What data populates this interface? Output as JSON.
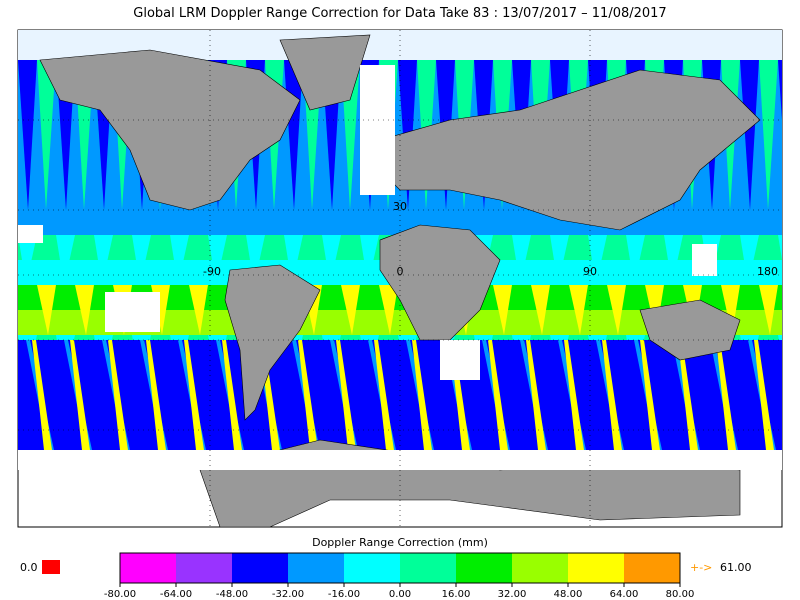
{
  "title": "Global LRM Doppler Range Correction for Data Take 83 : 13/07/2017 – 11/08/2017",
  "map": {
    "latitude_labels": [
      "30"
    ],
    "longitude_labels": [
      "-90",
      "0",
      "90",
      "180"
    ]
  },
  "colorbar": {
    "title": "Doppler Range Correction (mm)",
    "ticks": [
      {
        "value": -80,
        "label": "-80.00"
      },
      {
        "value": -64,
        "label": "-64.00"
      },
      {
        "value": -48,
        "label": "-48.00"
      },
      {
        "value": -32,
        "label": "-32.00"
      },
      {
        "value": -16,
        "label": "-16.00"
      },
      {
        "value": 0,
        "label": "0.00"
      },
      {
        "value": 16,
        "label": "16.00"
      },
      {
        "value": 32,
        "label": "32.00"
      },
      {
        "value": 48,
        "label": "48.00"
      },
      {
        "value": 64,
        "label": "64.00"
      },
      {
        "value": 80,
        "label": "80.00"
      }
    ],
    "colors": [
      "#ff00ff",
      "#9933ff",
      "#0000ff",
      "#0099ff",
      "#00ffff",
      "#00ff99",
      "#00ee00",
      "#99ff00",
      "#ffff00",
      "#ff9900"
    ]
  },
  "no_data": {
    "label": "0.0",
    "color": "#ff0000"
  },
  "overflow": {
    "arrow": "+->",
    "value": "61.00",
    "color": "#ff9900"
  }
}
